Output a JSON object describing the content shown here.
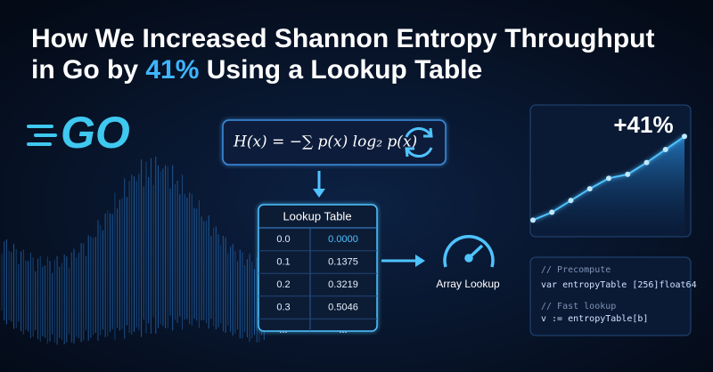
{
  "header": {
    "title_line1": "How We Increased Shannon Entropy Throughput",
    "title_line2_before": "in Go by",
    "title_highlight": "41%",
    "title_line2_after": "Using a Lookup Table"
  },
  "logo": {
    "text": "GO"
  },
  "formula": {
    "text": "H(x) = −∑ p(x) log₂ p(x)"
  },
  "table": {
    "title": "Lookup Table",
    "rows": [
      [
        "0.0",
        "0.0000"
      ],
      [
        "0.1",
        "0.1375"
      ],
      [
        "0.2",
        "0.3219"
      ],
      [
        "0.3",
        "0.5046"
      ],
      [
        "...",
        "..."
      ]
    ]
  },
  "gauge": {
    "label": "Array Lookup"
  },
  "growth_chart": {
    "label": "+41%",
    "values": [
      12,
      18,
      27,
      36,
      44,
      47,
      56,
      66,
      76
    ],
    "ylim": [
      0,
      100
    ],
    "color": "#4fc3ff"
  },
  "code": {
    "lines": [
      "// Precompute",
      "var entropyTable [256]float64",
      "// Fast lookup",
      "v := entropyTable[b]"
    ]
  }
}
